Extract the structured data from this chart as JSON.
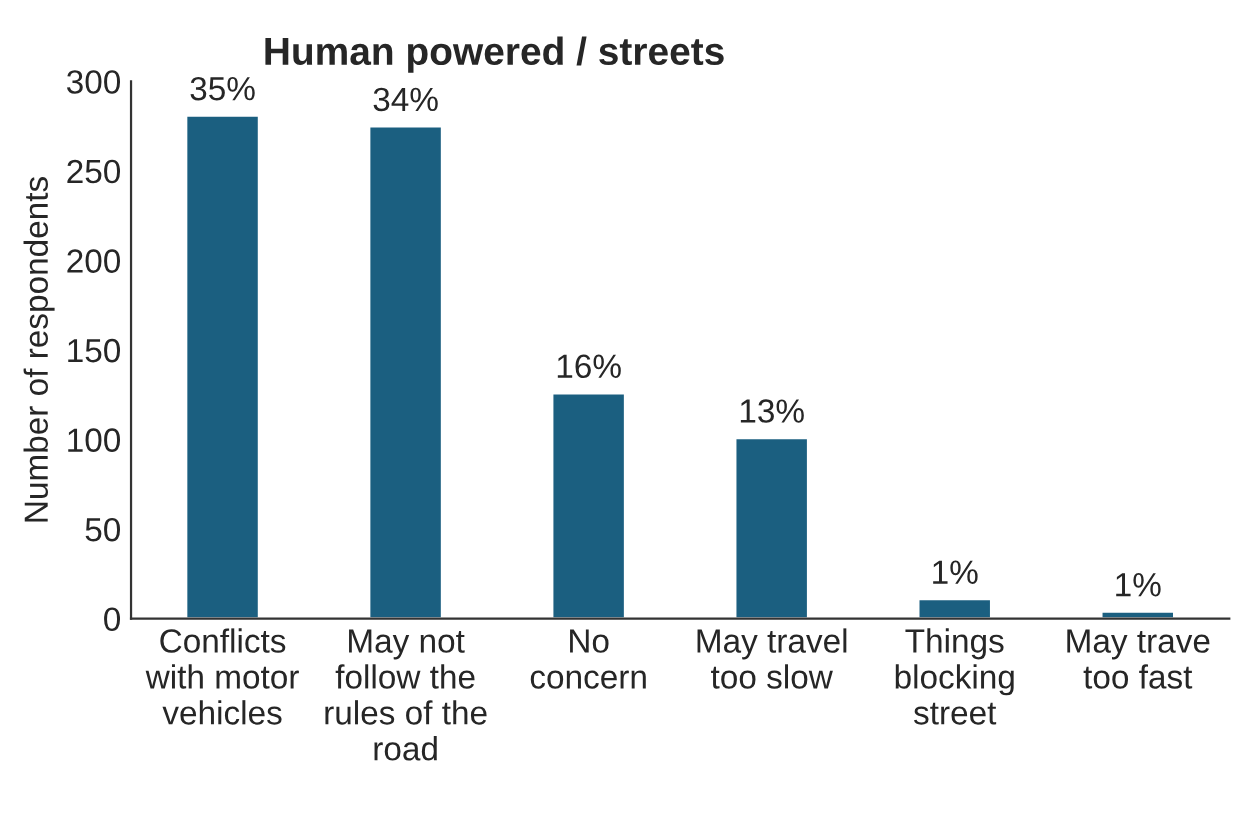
{
  "chart_data": {
    "type": "bar",
    "title": "Human powered / streets",
    "ylabel": "Number of respondents",
    "categories": [
      "Conflicts\nwith motor\nvehicles",
      "May not\nfollow the\nrules of the\nroad",
      "No\nconcern",
      "May travel\ntoo slow",
      "Things\nblocking\nstreet",
      "May trave\ntoo fast"
    ],
    "values": [
      281,
      275,
      126,
      101,
      11,
      4
    ],
    "annotations": [
      {
        "text": "35%",
        "x": "Conflicts\nwith motor\nvehicles",
        "y": 281
      },
      {
        "text": "34%",
        "x": "May not\nfollow the\nrules of the\nroad",
        "y": 275
      },
      {
        "text": "16%",
        "x": "No\nconcern",
        "y": 126
      },
      {
        "text": "13%",
        "x": "May travel\ntoo slow",
        "y": 101
      },
      {
        "text": "1%",
        "x": "Things\nblocking\nstreet",
        "y": 11
      },
      {
        "text": "1%",
        "x": "May trave\ntoo fast",
        "y": 4
      }
    ],
    "color": "#1b5f80",
    "ylim": [
      0,
      300
    ],
    "yticks": [
      0,
      50,
      100,
      150,
      200,
      250,
      300
    ],
    "grid": false,
    "legend": false
  }
}
